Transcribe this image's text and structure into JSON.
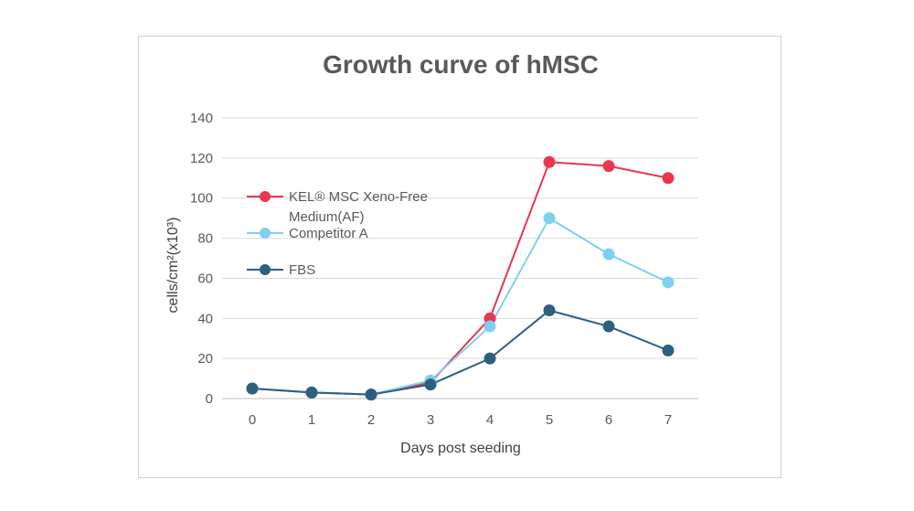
{
  "chart_data": {
    "type": "line",
    "title": "Growth curve of hMSC",
    "xlabel": "Days post seeding",
    "ylabel": "cells/cm²(x10³)",
    "x": [
      0,
      1,
      2,
      3,
      4,
      5,
      6,
      7
    ],
    "ylim": [
      0,
      140
    ],
    "yticks": [
      0,
      20,
      40,
      60,
      80,
      100,
      120,
      140
    ],
    "grid": true,
    "legend_position": "left",
    "series": [
      {
        "name": "KEL® MSC Xeno-Free Medium(AF)",
        "legend_lines": [
          "KEL® MSC Xeno-Free",
          "Medium(AF)"
        ],
        "color": "#e8374f",
        "values": [
          5,
          3,
          2,
          8,
          40,
          118,
          116,
          110
        ]
      },
      {
        "name": "Competitor A",
        "legend_lines": [
          "Competitor A"
        ],
        "color": "#7fd0f0",
        "values": [
          5,
          3,
          2,
          9,
          36,
          90,
          72,
          58
        ]
      },
      {
        "name": "FBS",
        "legend_lines": [
          "FBS"
        ],
        "color": "#2d5f7f",
        "values": [
          5,
          3,
          2,
          7,
          20,
          44,
          36,
          24
        ]
      }
    ]
  }
}
